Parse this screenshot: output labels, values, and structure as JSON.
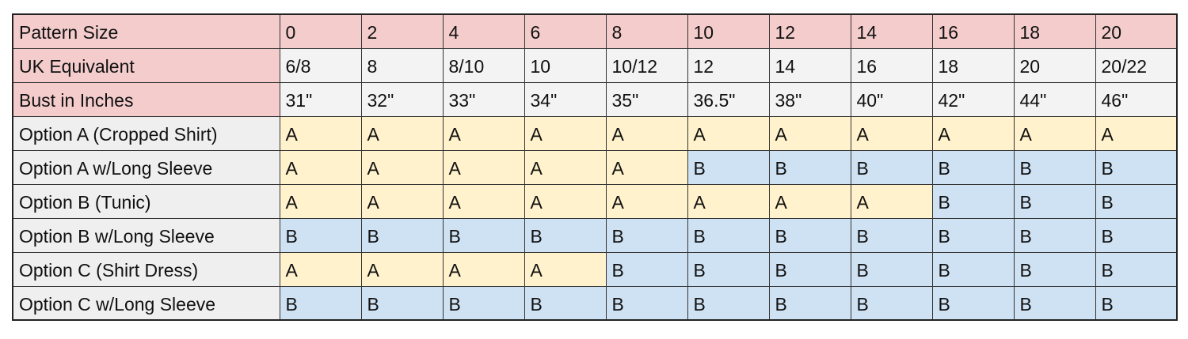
{
  "table": {
    "header": [
      "Pattern Size",
      "0",
      "2",
      "4",
      "6",
      "8",
      "10",
      "12",
      "14",
      "16",
      "18",
      "20"
    ],
    "rows": [
      [
        "UK Equivalent",
        "6/8",
        "8",
        "8/10",
        "10",
        "10/12",
        "12",
        "14",
        "16",
        "18",
        "20",
        "20/22"
      ],
      [
        "Bust in Inches",
        "31\"",
        "32\"",
        "33\"",
        "34\"",
        "35\"",
        "36.5\"",
        "38\"",
        "40\"",
        "42\"",
        "44\"",
        "46\""
      ],
      [
        "Option A (Cropped Shirt)",
        "A",
        "A",
        "A",
        "A",
        "A",
        "A",
        "A",
        "A",
        "A",
        "A",
        "A"
      ],
      [
        "Option A w/Long Sleeve",
        "A",
        "A",
        "A",
        "A",
        "A",
        "B",
        "B",
        "B",
        "B",
        "B",
        "B"
      ],
      [
        "Option B (Tunic)",
        "A",
        "A",
        "A",
        "A",
        "A",
        "A",
        "A",
        "A",
        "B",
        "B",
        "B"
      ],
      [
        "Option B w/Long Sleeve",
        "B",
        "B",
        "B",
        "B",
        "B",
        "B",
        "B",
        "B",
        "B",
        "B",
        "B"
      ],
      [
        "Option C (Shirt Dress)",
        "A",
        "A",
        "A",
        "A",
        "B",
        "B",
        "B",
        "B",
        "B",
        "B",
        "B"
      ],
      [
        "Option C w/Long Sleeve",
        "B",
        "B",
        "B",
        "B",
        "B",
        "B",
        "B",
        "B",
        "B",
        "B",
        "B"
      ]
    ],
    "colors": {
      "header": "#f4cccc",
      "info_label": "#f4cccc",
      "info_cell": "#f3f3f3",
      "option_label": "#efefef",
      "A": "#fff2cc",
      "B": "#cfe2f3"
    }
  }
}
